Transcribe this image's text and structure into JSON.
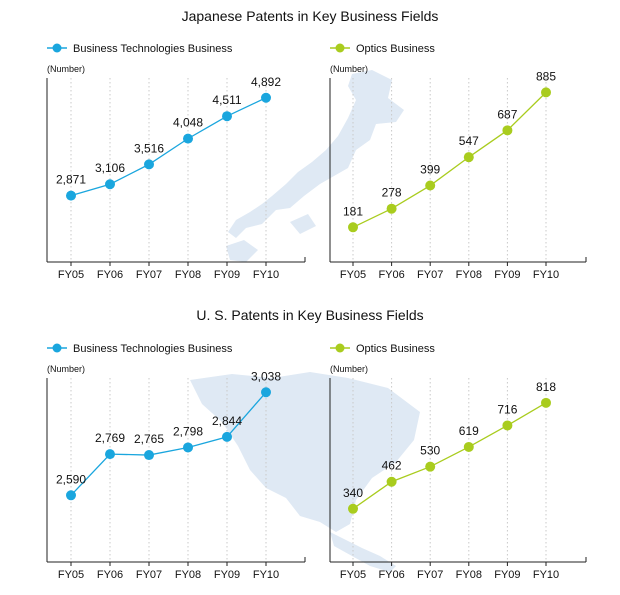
{
  "colors": {
    "business": "#1aa6de",
    "optics": "#a9cc1e",
    "axis": "#222222",
    "grid": "#c9c9c9",
    "map": "#dfe9f4"
  },
  "chart_data": [
    {
      "type": "line",
      "group": "Japanese Patents in Key Business Fields",
      "title": "Japanese Patents in Key Business Fields",
      "legend": "Business Technologies Business",
      "ylabel": "(Number)",
      "categories": [
        "FY05",
        "FY06",
        "FY07",
        "FY08",
        "FY09",
        "FY10"
      ],
      "values": [
        2871,
        3106,
        3516,
        4048,
        4511,
        4892
      ],
      "labels": [
        "2,871",
        "3,106",
        "3,516",
        "4,048",
        "4,511",
        "4,892"
      ],
      "ylim": [
        1500,
        5300
      ],
      "color": "#1aa6de"
    },
    {
      "type": "line",
      "group": "Japanese Patents in Key Business Fields",
      "title": "",
      "legend": "Optics Business",
      "ylabel": "(Number)",
      "categories": [
        "FY05",
        "FY06",
        "FY07",
        "FY08",
        "FY09",
        "FY10"
      ],
      "values": [
        181,
        278,
        399,
        547,
        687,
        885
      ],
      "labels": [
        "181",
        "278",
        "399",
        "547",
        "687",
        "885"
      ],
      "ylim": [
        0,
        960
      ],
      "color": "#a9cc1e"
    },
    {
      "type": "line",
      "group": "U. S. Patents in Key Business Fields",
      "title": "U. S. Patents in Key Business Fields",
      "legend": "Business Technologies Business",
      "ylabel": "(Number)",
      "categories": [
        "FY05",
        "FY06",
        "FY07",
        "FY08",
        "FY09",
        "FY10"
      ],
      "values": [
        2590,
        2769,
        2765,
        2798,
        2844,
        3038
      ],
      "labels": [
        "2,590",
        "2,769",
        "2,765",
        "2,798",
        "2,844",
        "3,038"
      ],
      "ylim": [
        2300,
        3100
      ],
      "color": "#1aa6de"
    },
    {
      "type": "line",
      "group": "U. S. Patents in Key Business Fields",
      "title": "",
      "legend": "Optics Business",
      "ylabel": "(Number)",
      "categories": [
        "FY05",
        "FY06",
        "FY07",
        "FY08",
        "FY09",
        "FY10"
      ],
      "values": [
        340,
        462,
        530,
        619,
        716,
        818
      ],
      "labels": [
        "340",
        "462",
        "530",
        "619",
        "716",
        "818"
      ],
      "ylim": [
        100,
        930
      ],
      "color": "#a9cc1e"
    }
  ]
}
